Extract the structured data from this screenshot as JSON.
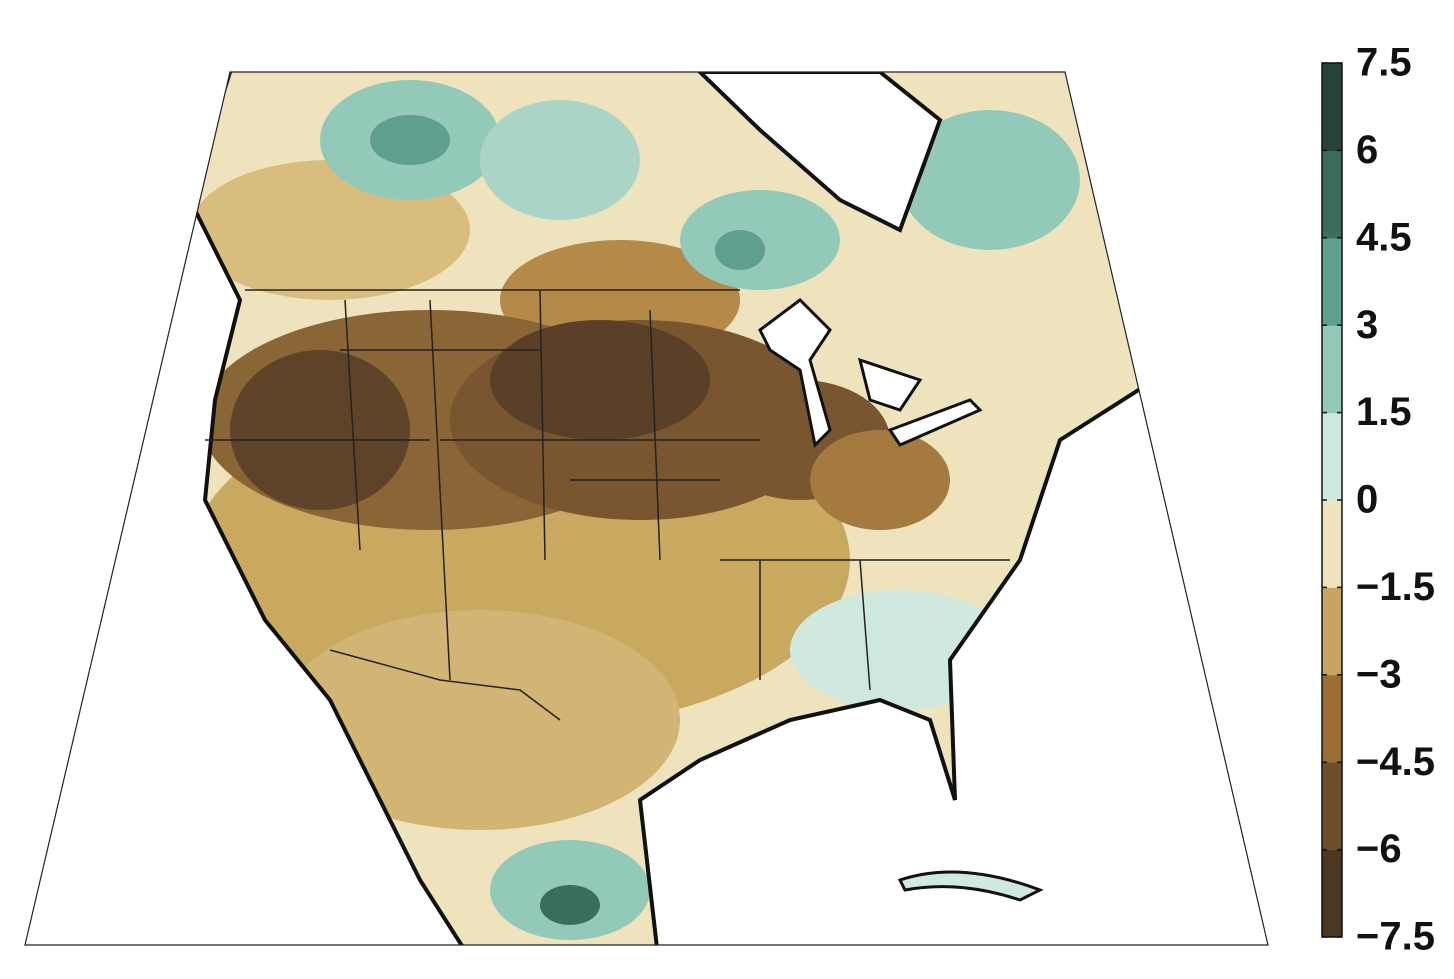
{
  "colorbar": {
    "lim": [
      -7.5,
      7.5
    ],
    "ticks": [
      7.5,
      6,
      4.5,
      3,
      1.5,
      0,
      {
        "value": -1.5,
        "label": "−1.5"
      },
      {
        "value": -3,
        "label": "−3"
      },
      {
        "value": -4.5,
        "label": "−4.5"
      },
      {
        "value": -6,
        "label": "−6"
      },
      {
        "value": -7.5,
        "label": "−7.5"
      }
    ],
    "colors": [
      "#4a3822",
      "#6e4f2c",
      "#9a6e35",
      "#c7a463",
      "#efe3bd",
      "#cfe9df",
      "#92c9b8",
      "#5f9f8d",
      "#3b6d5e",
      "#26433a"
    ]
  }
}
